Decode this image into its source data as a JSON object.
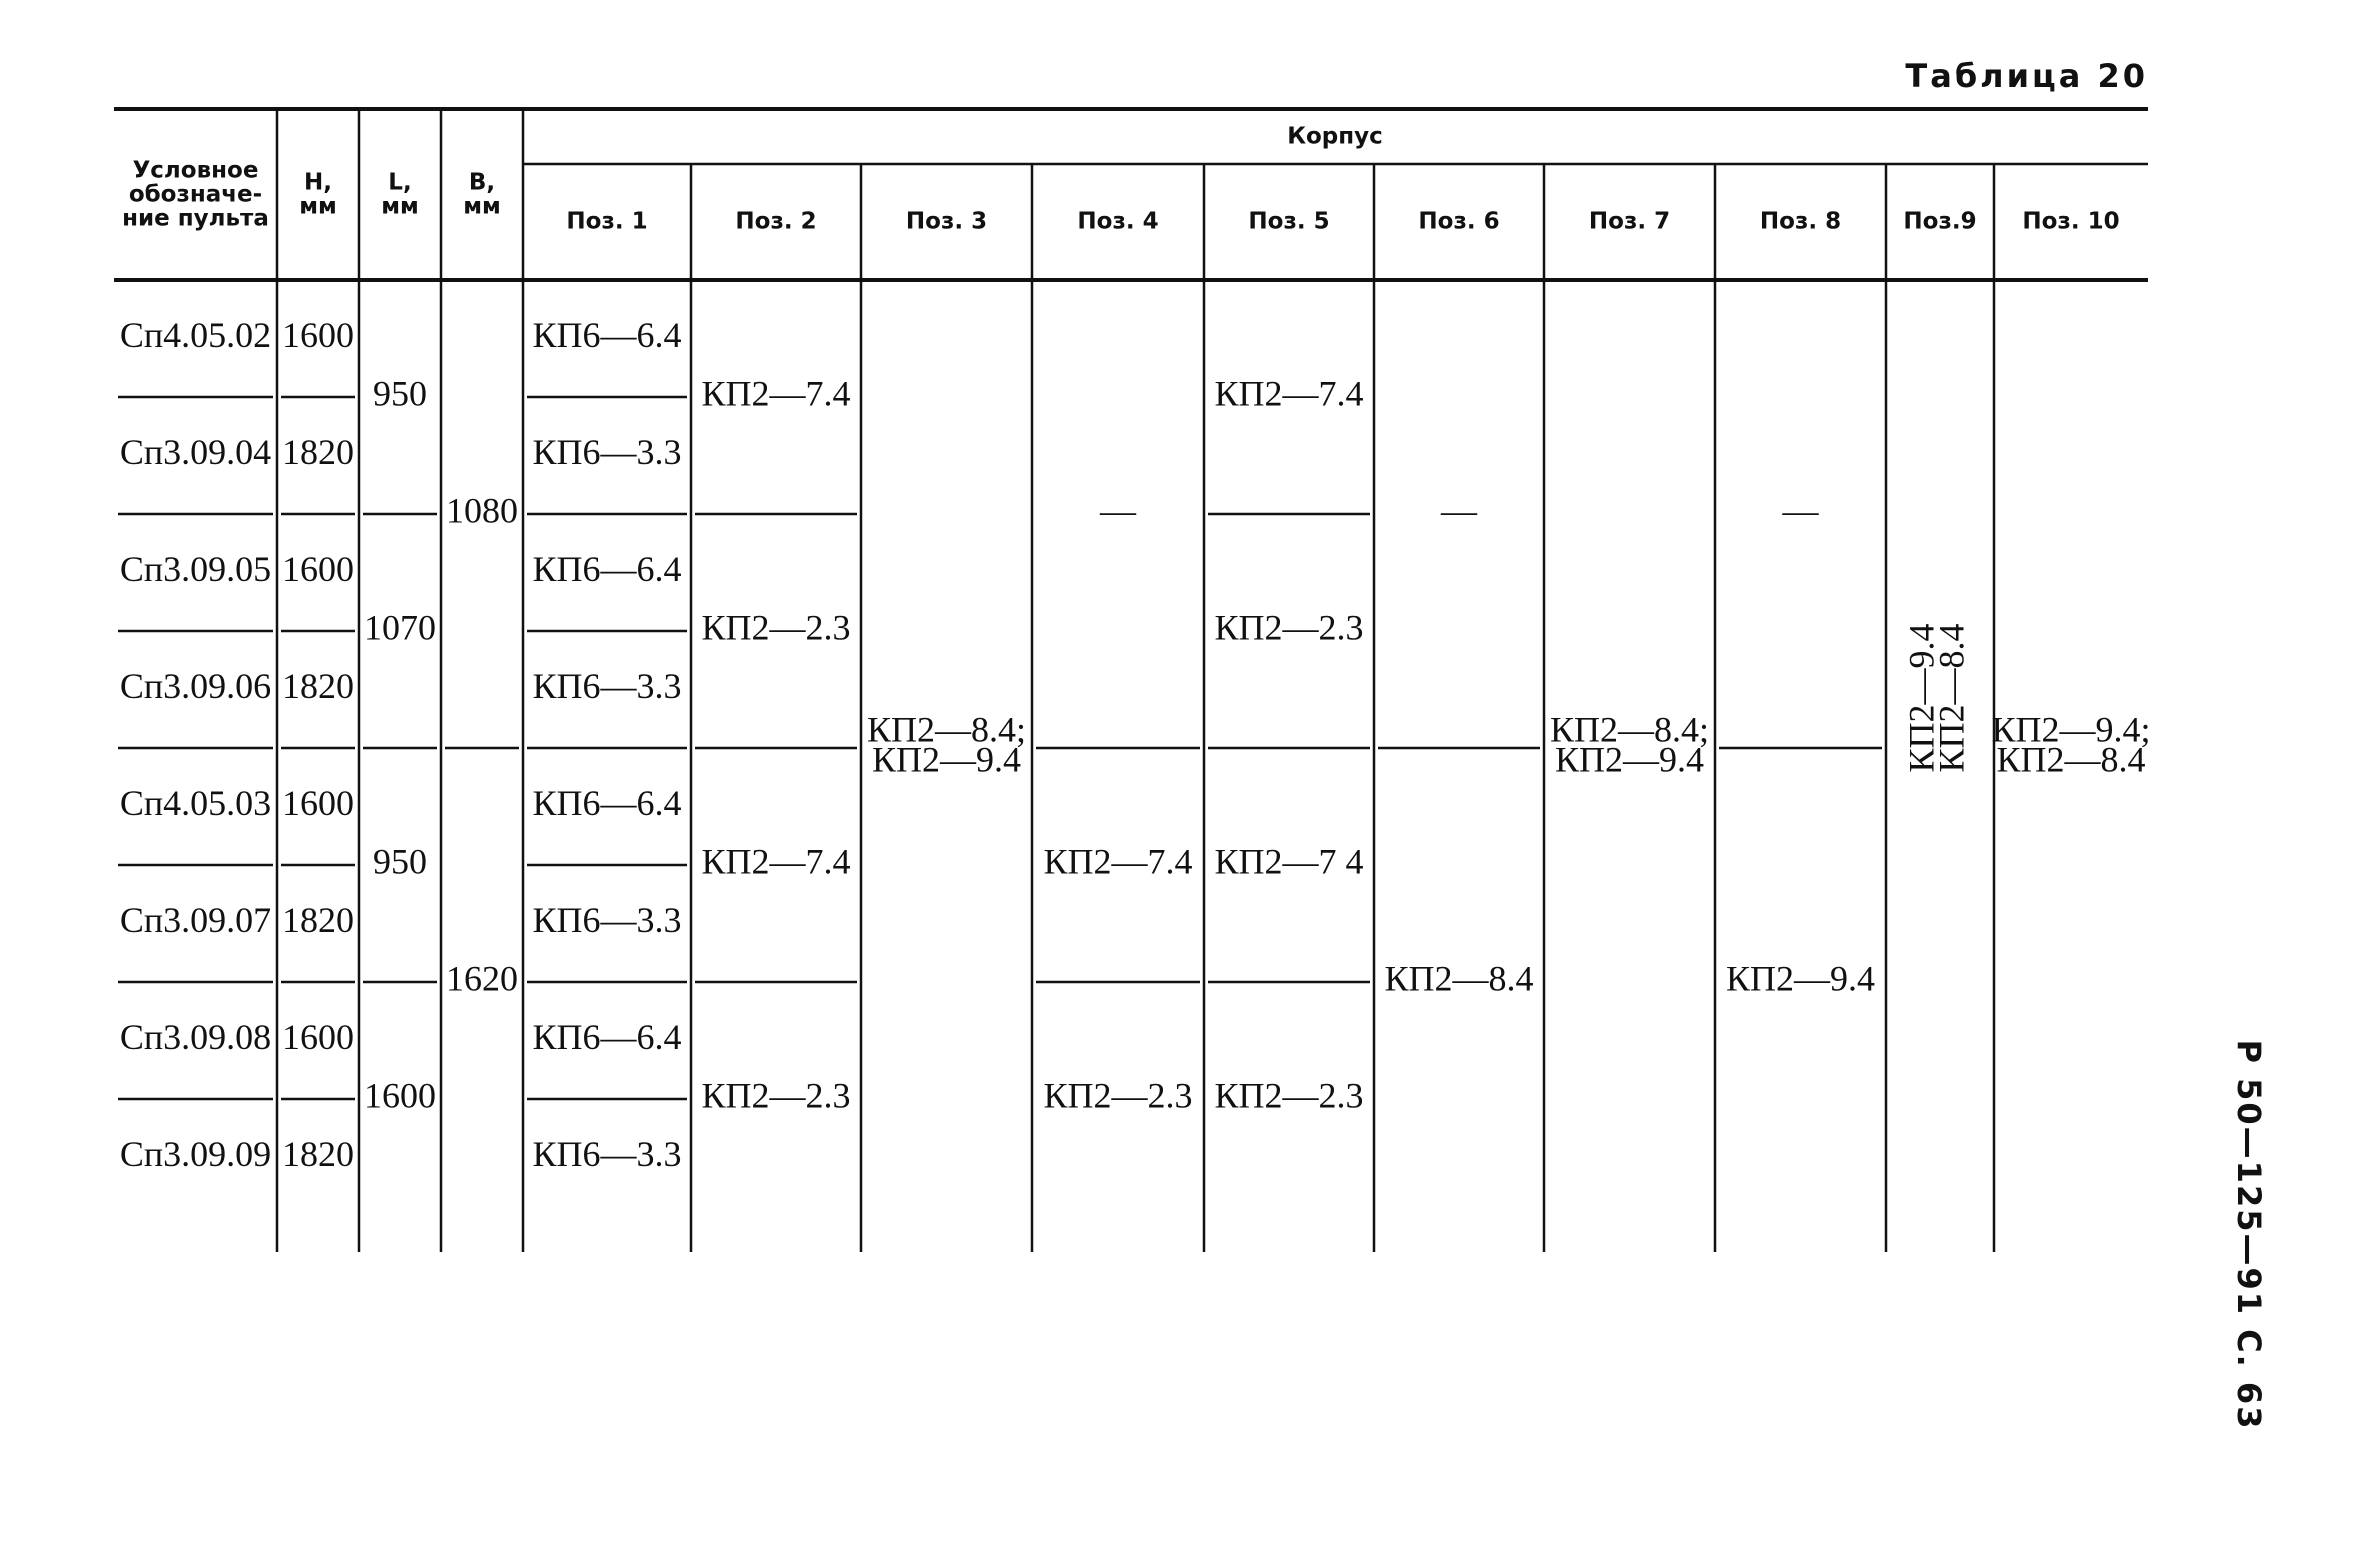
{
  "table_title": "Таблица 20",
  "group_header": "Корпус",
  "columns": [
    {
      "header": [
        "Условное",
        "обозначе-",
        "ние пульта"
      ],
      "cells": [
        {
          "rowspan": 1,
          "lines": [
            "Сп4.05.02"
          ]
        },
        {
          "rowspan": 1,
          "lines": [
            "Сп3.09.04"
          ]
        },
        {
          "rowspan": 1,
          "lines": [
            "Сп3.09.05"
          ]
        },
        {
          "rowspan": 1,
          "lines": [
            "Сп3.09.06"
          ]
        },
        {
          "rowspan": 1,
          "lines": [
            "Сп4.05.03"
          ]
        },
        {
          "rowspan": 1,
          "lines": [
            "Сп3.09.07"
          ]
        },
        {
          "rowspan": 1,
          "lines": [
            "Сп3.09.08"
          ]
        },
        {
          "rowspan": 1,
          "lines": [
            "Сп3.09.09"
          ]
        }
      ]
    },
    {
      "header": [
        "Н,",
        "мм"
      ],
      "cells": [
        {
          "rowspan": 1,
          "lines": [
            "1600"
          ]
        },
        {
          "rowspan": 1,
          "lines": [
            "1820"
          ]
        },
        {
          "rowspan": 1,
          "lines": [
            "1600"
          ]
        },
        {
          "rowspan": 1,
          "lines": [
            "1820"
          ]
        },
        {
          "rowspan": 1,
          "lines": [
            "1600"
          ]
        },
        {
          "rowspan": 1,
          "lines": [
            "1820"
          ]
        },
        {
          "rowspan": 1,
          "lines": [
            "1600"
          ]
        },
        {
          "rowspan": 1,
          "lines": [
            "1820"
          ]
        }
      ]
    },
    {
      "header": [
        "L,",
        "мм"
      ],
      "cells": [
        {
          "rowspan": 2,
          "lines": [
            "950"
          ]
        },
        {
          "rowspan": 2,
          "lines": [
            "1070"
          ]
        },
        {
          "rowspan": 2,
          "lines": [
            "950"
          ]
        },
        {
          "rowspan": 2,
          "lines": [
            "1600"
          ]
        }
      ]
    },
    {
      "header": [
        "В,",
        "мм"
      ],
      "cells": [
        {
          "rowspan": 4,
          "lines": [
            "1080"
          ]
        },
        {
          "rowspan": 4,
          "lines": [
            "1620"
          ]
        }
      ]
    },
    {
      "header": [
        "Поз. 1"
      ],
      "cells": [
        {
          "rowspan": 1,
          "lines": [
            "КП6—6.4"
          ]
        },
        {
          "rowspan": 1,
          "lines": [
            "КП6—3.3"
          ]
        },
        {
          "rowspan": 1,
          "lines": [
            "КП6—6.4"
          ]
        },
        {
          "rowspan": 1,
          "lines": [
            "КП6—3.3"
          ]
        },
        {
          "rowspan": 1,
          "lines": [
            "КП6—6.4"
          ]
        },
        {
          "rowspan": 1,
          "lines": [
            "КП6—3.3"
          ]
        },
        {
          "rowspan": 1,
          "lines": [
            "КП6—6.4"
          ]
        },
        {
          "rowspan": 1,
          "lines": [
            "КП6—3.3"
          ]
        }
      ]
    },
    {
      "header": [
        "Поз. 2"
      ],
      "cells": [
        {
          "rowspan": 2,
          "lines": [
            "КП2—7.4"
          ]
        },
        {
          "rowspan": 2,
          "lines": [
            "КП2—2.3"
          ]
        },
        {
          "rowspan": 2,
          "lines": [
            "КП2—7.4"
          ]
        },
        {
          "rowspan": 2,
          "lines": [
            "КП2—2.3"
          ]
        }
      ]
    },
    {
      "header": [
        "Поз. 3"
      ],
      "cells": [
        {
          "rowspan": 8,
          "lines": [
            "КП2—8.4;",
            "КП2—9.4"
          ]
        }
      ]
    },
    {
      "header": [
        "Поз. 4"
      ],
      "cells": [
        {
          "rowspan": 4,
          "lines": [
            "—"
          ]
        },
        {
          "rowspan": 2,
          "lines": [
            "КП2—7.4"
          ]
        },
        {
          "rowspan": 2,
          "lines": [
            "КП2—2.3"
          ]
        }
      ]
    },
    {
      "header": [
        "Поз. 5"
      ],
      "cells": [
        {
          "rowspan": 2,
          "lines": [
            "КП2—7.4"
          ]
        },
        {
          "rowspan": 2,
          "lines": [
            "КП2—2.3"
          ]
        },
        {
          "rowspan": 2,
          "lines": [
            "КП2—7 4"
          ]
        },
        {
          "rowspan": 2,
          "lines": [
            "КП2—2.3"
          ]
        }
      ]
    },
    {
      "header": [
        "Поз. 6"
      ],
      "cells": [
        {
          "rowspan": 4,
          "lines": [
            "—"
          ]
        },
        {
          "rowspan": 4,
          "lines": [
            "КП2—8.4"
          ]
        }
      ]
    },
    {
      "header": [
        "Поз. 7"
      ],
      "cells": [
        {
          "rowspan": 8,
          "lines": [
            "КП2—8.4;",
            "КП2—9.4"
          ]
        }
      ]
    },
    {
      "header": [
        "Поз. 8"
      ],
      "cells": [
        {
          "rowspan": 4,
          "lines": [
            "—"
          ]
        },
        {
          "rowspan": 4,
          "lines": [
            "КП2—9.4"
          ]
        }
      ]
    },
    {
      "header": [
        "Поз.9"
      ],
      "cells": [
        {
          "rowspan": 8,
          "lines": [
            "КП2—9.4",
            "КП2—8.4"
          ],
          "rotated": true
        }
      ]
    },
    {
      "header": [
        "Поз. 10"
      ],
      "cells": [
        {
          "rowspan": 8,
          "lines": [
            "КП2—9.4;",
            "КП2—8.4"
          ]
        }
      ]
    }
  ],
  "side_text": "Р 50—125—91 С. 63"
}
